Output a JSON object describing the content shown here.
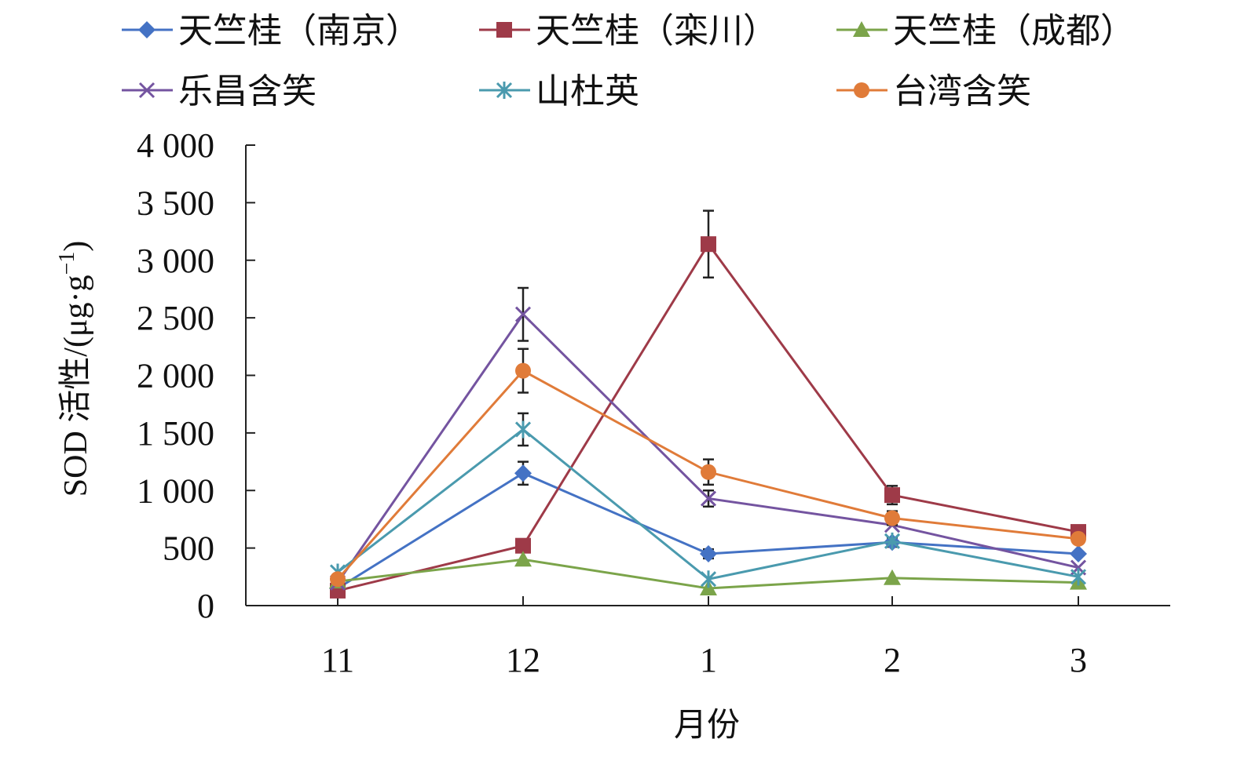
{
  "chart_data": {
    "type": "line",
    "title": "",
    "xlabel": "月份",
    "ylabel_latin": "SOD ",
    "ylabel_cjk": "活性",
    "ylabel_unit": "/(μg·g",
    "ylabel_sup": "−1",
    "ylabel_close": ")",
    "categories": [
      "11",
      "12",
      "1",
      "2",
      "3"
    ],
    "ylim": [
      0,
      4000
    ],
    "yticks": [
      0,
      500,
      1000,
      1500,
      2000,
      2500,
      3000,
      3500,
      4000
    ],
    "ytick_labels": [
      "0",
      "500",
      "1 000",
      "1 500",
      "2 000",
      "2 500",
      "3 000",
      "3 500",
      "4 000"
    ],
    "grid": false,
    "legend_position": "top",
    "series": [
      {
        "name": "天竺桂（南京）",
        "color": "#4472C4",
        "marker": "diamond",
        "values": [
          150,
          1150,
          450,
          550,
          450
        ],
        "errors": [
          0,
          100,
          40,
          40,
          0
        ]
      },
      {
        "name": "天竺桂（栾川）",
        "color": "#9E3A48",
        "marker": "square",
        "values": [
          130,
          520,
          3140,
          960,
          640
        ],
        "errors": [
          0,
          0,
          290,
          80,
          0
        ]
      },
      {
        "name": "天竺桂（成都）",
        "color": "#7BA44A",
        "marker": "triangle",
        "values": [
          210,
          400,
          150,
          240,
          200
        ],
        "errors": [
          0,
          0,
          0,
          0,
          0
        ]
      },
      {
        "name": "乐昌含笑",
        "color": "#7454A0",
        "marker": "x",
        "values": [
          200,
          2530,
          930,
          700,
          330
        ],
        "errors": [
          0,
          230,
          70,
          0,
          0
        ]
      },
      {
        "name": "山杜英",
        "color": "#4A9AAE",
        "marker": "star",
        "values": [
          290,
          1530,
          230,
          560,
          250
        ],
        "errors": [
          0,
          140,
          0,
          0,
          0
        ]
      },
      {
        "name": "台湾含笑",
        "color": "#E07B39",
        "marker": "circle",
        "values": [
          230,
          2040,
          1160,
          760,
          580
        ],
        "errors": [
          0,
          190,
          110,
          60,
          0
        ]
      }
    ]
  }
}
